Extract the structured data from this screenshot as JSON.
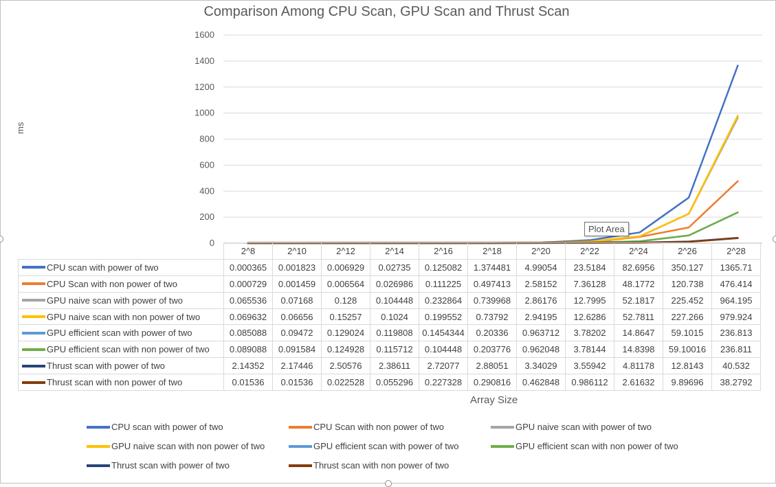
{
  "chart_data": {
    "type": "line",
    "title": "Comparison Among CPU Scan, GPU Scan and Thrust Scan",
    "xlabel": "Array Size",
    "ylabel": "ms",
    "ylim": [
      0,
      1600
    ],
    "yticks": [
      "0",
      "200",
      "400",
      "600",
      "800",
      "1000",
      "1200",
      "1400",
      "1600"
    ],
    "grid": true,
    "legend_position": "bottom",
    "has_data_table": true,
    "categories": [
      "2^8",
      "2^10",
      "2^12",
      "2^14",
      "2^16",
      "2^18",
      "2^20",
      "2^22",
      "2^24",
      "2^26",
      "2^28"
    ],
    "series": [
      {
        "name": "CPU scan with power of two",
        "color": "#4472C4",
        "values": [
          0.000365,
          0.001823,
          0.006929,
          0.02735,
          0.125082,
          1.374481,
          4.99054,
          23.5184,
          82.6956,
          350.127,
          1365.71
        ],
        "labels": [
          "0.000365",
          "0.001823",
          "0.006929",
          "0.02735",
          "0.125082",
          "1.374481",
          "4.99054",
          "23.5184",
          "82.6956",
          "350.127",
          "1365.71"
        ]
      },
      {
        "name": "CPU Scan with non power of two",
        "color": "#ED7D31",
        "values": [
          0.000729,
          0.001459,
          0.006564,
          0.026986,
          0.111225,
          0.497413,
          2.58152,
          7.36128,
          48.1772,
          120.738,
          476.414
        ],
        "labels": [
          "0.000729",
          "0.001459",
          "0.006564",
          "0.026986",
          "0.111225",
          "0.497413",
          "2.58152",
          "7.36128",
          "48.1772",
          "120.738",
          "476.414"
        ]
      },
      {
        "name": "GPU naive scan with power of two",
        "color": "#A5A5A5",
        "values": [
          0.065536,
          0.07168,
          0.128,
          0.104448,
          0.232864,
          0.739968,
          2.86176,
          12.7995,
          52.1817,
          225.452,
          964.195
        ],
        "labels": [
          "0.065536",
          "0.07168",
          "0.128",
          "0.104448",
          "0.232864",
          "0.739968",
          "2.86176",
          "12.7995",
          "52.1817",
          "225.452",
          "964.195"
        ]
      },
      {
        "name": "GPU naive scan with non power of two",
        "color": "#FFC000",
        "values": [
          0.069632,
          0.06656,
          0.15257,
          0.1024,
          0.199552,
          0.73792,
          2.94195,
          12.6286,
          52.7811,
          227.266,
          979.924
        ],
        "labels": [
          "0.069632",
          "0.06656",
          "0.15257",
          "0.1024",
          "0.199552",
          "0.73792",
          "2.94195",
          "12.6286",
          "52.7811",
          "227.266",
          "979.924"
        ]
      },
      {
        "name": "GPU efficient scan with power of two",
        "color": "#5B9BD5",
        "values": [
          0.085088,
          0.09472,
          0.129024,
          0.119808,
          0.1454344,
          0.20336,
          0.963712,
          3.78202,
          14.8647,
          59.1015,
          236.813
        ],
        "labels": [
          "0.085088",
          "0.09472",
          "0.129024",
          "0.119808",
          "0.1454344",
          "0.20336",
          "0.963712",
          "3.78202",
          "14.8647",
          "59.1015",
          "236.813"
        ]
      },
      {
        "name": "GPU efficient scan with non power of two",
        "color": "#70AD47",
        "values": [
          0.089088,
          0.091584,
          0.124928,
          0.115712,
          0.104448,
          0.203776,
          0.962048,
          3.78144,
          14.8398,
          59.10016,
          236.811
        ],
        "labels": [
          "0.089088",
          "0.091584",
          "0.124928",
          "0.115712",
          "0.104448",
          "0.203776",
          "0.962048",
          "3.78144",
          "14.8398",
          "59.10016",
          "236.811"
        ]
      },
      {
        "name": "Thrust scan with power of two",
        "color": "#264478",
        "values": [
          2.14352,
          2.17446,
          2.50576,
          2.38611,
          2.72077,
          2.88051,
          3.34029,
          3.55942,
          4.81178,
          12.8143,
          40.532
        ],
        "labels": [
          "2.14352",
          "2.17446",
          "2.50576",
          "2.38611",
          "2.72077",
          "2.88051",
          "3.34029",
          "3.55942",
          "4.81178",
          "12.8143",
          "40.532"
        ]
      },
      {
        "name": "Thrust scan with non power of two",
        "color": "#843C0C",
        "values": [
          0.01536,
          0.01536,
          0.022528,
          0.055296,
          0.227328,
          0.290816,
          0.462848,
          0.986112,
          2.61632,
          9.89696,
          38.2792
        ],
        "labels": [
          "0.01536",
          "0.01536",
          "0.022528",
          "0.055296",
          "0.227328",
          "0.290816",
          "0.462848",
          "0.986112",
          "2.61632",
          "9.89696",
          "38.2792"
        ]
      }
    ]
  },
  "tooltip": {
    "text": "Plot Area"
  }
}
